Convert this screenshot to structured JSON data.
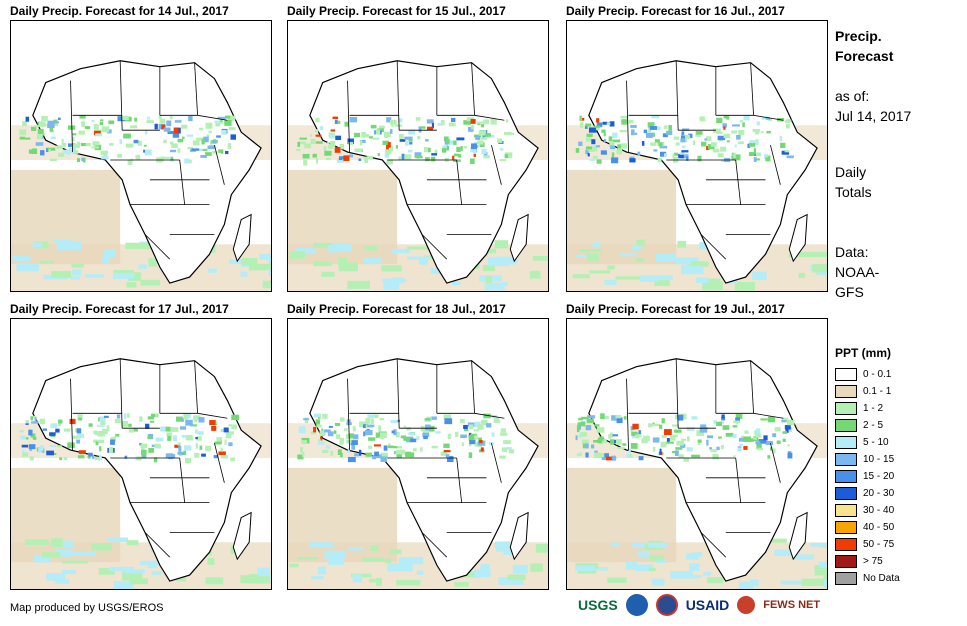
{
  "panels": [
    {
      "title": "Daily Precip. Forecast for 14 Jul., 2017"
    },
    {
      "title": "Daily Precip. Forecast for 15 Jul., 2017"
    },
    {
      "title": "Daily Precip. Forecast for 16 Jul., 2017"
    },
    {
      "title": "Daily Precip. Forecast for 17 Jul., 2017"
    },
    {
      "title": "Daily Precip. Forecast for 18 Jul., 2017"
    },
    {
      "title": "Daily Precip. Forecast for 19 Jul., 2017"
    }
  ],
  "sidebar": {
    "heading_line1": "Precip.",
    "heading_line2": "Forecast",
    "asof_label": "as of:",
    "asof_date": "Jul 14, 2017",
    "totals_line1": "Daily",
    "totals_line2": "Totals",
    "data_line1": "Data:",
    "data_line2": "NOAA-",
    "data_line3": "GFS"
  },
  "legend": {
    "title": "PPT (mm)",
    "items": [
      {
        "label": "0 - 0.1",
        "color": "#ffffff"
      },
      {
        "label": "0.1 - 1",
        "color": "#e8d8bc"
      },
      {
        "label": "1 - 2",
        "color": "#b4f0b4"
      },
      {
        "label": "2 - 5",
        "color": "#74d874"
      },
      {
        "label": "5 - 10",
        "color": "#b4ecf8"
      },
      {
        "label": "10 - 15",
        "color": "#7cb8f0"
      },
      {
        "label": "15 - 20",
        "color": "#4890e8"
      },
      {
        "label": "20 - 30",
        "color": "#1c5cd8"
      },
      {
        "label": "30 - 40",
        "color": "#f8e48c"
      },
      {
        "label": "40 - 50",
        "color": "#f8a400"
      },
      {
        "label": "50 - 75",
        "color": "#f03c00"
      },
      {
        "label": "> 75",
        "color": "#a01818"
      },
      {
        "label": "No Data",
        "color": "#a0a0a0"
      }
    ]
  },
  "credit": "Map produced by USGS/EROS",
  "logos": {
    "usgs": "USGS",
    "usaid": "USAID",
    "fewsnet": "FEWS NET"
  }
}
